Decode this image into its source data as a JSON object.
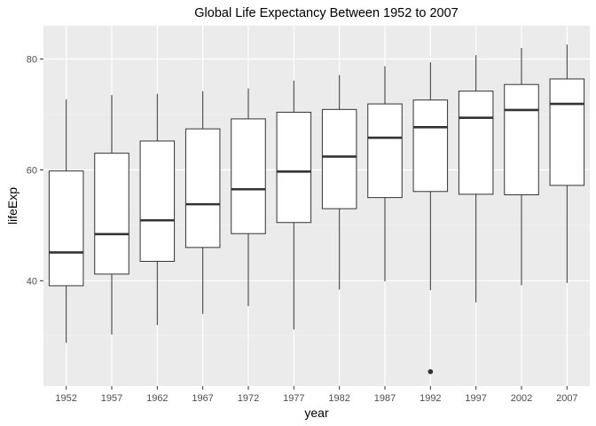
{
  "chart_data": {
    "type": "boxplot",
    "title": "Global Life Expectancy Between 1952 to 2007",
    "xlabel": "year",
    "ylabel": "lifeExp",
    "ylim": [
      21,
      86
    ],
    "y_ticks": [
      40,
      60,
      80
    ],
    "grid": true,
    "categories": [
      "1952",
      "1957",
      "1962",
      "1967",
      "1972",
      "1977",
      "1982",
      "1987",
      "1992",
      "1997",
      "2002",
      "2007"
    ],
    "boxes": [
      {
        "min": 28.8,
        "q1": 39.1,
        "median": 45.1,
        "q3": 59.8,
        "max": 72.7
      },
      {
        "min": 30.3,
        "q1": 41.2,
        "median": 48.4,
        "q3": 63.0,
        "max": 73.5
      },
      {
        "min": 32.0,
        "q1": 43.5,
        "median": 50.9,
        "q3": 65.2,
        "max": 73.7
      },
      {
        "min": 34.0,
        "q1": 46.0,
        "median": 53.8,
        "q3": 67.4,
        "max": 74.2
      },
      {
        "min": 35.4,
        "q1": 48.5,
        "median": 56.5,
        "q3": 69.2,
        "max": 74.7
      },
      {
        "min": 31.2,
        "q1": 50.5,
        "median": 59.7,
        "q3": 70.4,
        "max": 76.1
      },
      {
        "min": 38.4,
        "q1": 53.0,
        "median": 62.4,
        "q3": 70.9,
        "max": 77.1
      },
      {
        "min": 39.9,
        "q1": 55.0,
        "median": 65.8,
        "q3": 71.9,
        "max": 78.7
      },
      {
        "min": 38.3,
        "q1": 56.1,
        "median": 67.7,
        "q3": 72.6,
        "max": 79.4
      },
      {
        "min": 36.1,
        "q1": 55.6,
        "median": 69.4,
        "q3": 74.2,
        "max": 80.7
      },
      {
        "min": 39.2,
        "q1": 55.5,
        "median": 70.8,
        "q3": 75.4,
        "max": 82.0
      },
      {
        "min": 39.6,
        "q1": 57.2,
        "median": 71.9,
        "q3": 76.4,
        "max": 82.6
      }
    ],
    "outliers": [
      {
        "category": "1992",
        "value": 23.6
      }
    ],
    "colors": {
      "panel": "#ebebeb",
      "grid_major": "#ffffff",
      "grid_minor": "#f5f5f5",
      "box_fill": "#ffffff",
      "box_line": "#333333"
    }
  }
}
